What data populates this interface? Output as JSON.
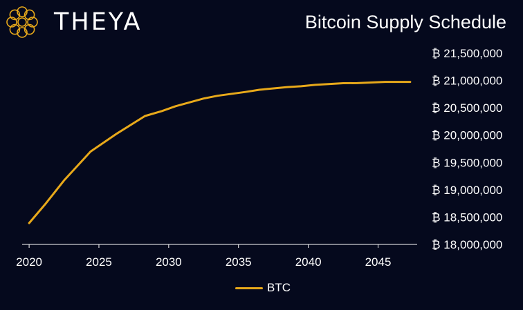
{
  "brand": {
    "name": "THEYA",
    "logo_icon": "theya-star-logo-icon"
  },
  "colors": {
    "background": "#05091d",
    "accent": "#e8a91a",
    "text": "#ffffff",
    "axis": "#ffffff"
  },
  "chart_data": {
    "type": "line",
    "title": "Bitcoin Supply Schedule",
    "xlabel": "",
    "ylabel": "",
    "xlim": [
      2019.5,
      2047.8
    ],
    "ylim": [
      18000000,
      21500000
    ],
    "x_ticks": [
      2020,
      2025,
      2030,
      2035,
      2040,
      2045
    ],
    "x_tick_labels": [
      "2020",
      "2025",
      "2030",
      "2035",
      "2040",
      "2045"
    ],
    "y_ticks": [
      18000000,
      18500000,
      19000000,
      19500000,
      20000000,
      20500000,
      21000000,
      21500000
    ],
    "y_tick_labels": [
      "₿ 18,000,000",
      "₿ 18,500,000",
      "₿ 19,000,000",
      "₿ 19,500,000",
      "₿ 20,000,000",
      "₿ 20,500,000",
      "₿ 21,000,000",
      "₿ 21,500,000"
    ],
    "grid": false,
    "legend_position": "bottom-center",
    "series": [
      {
        "name": "BTC",
        "x": [
          2020.0,
          2021.2,
          2022.5,
          2024.4,
          2026.3,
          2028.3,
          2029.5,
          2030.5,
          2032.5,
          2033.5,
          2035.5,
          2036.5,
          2038.5,
          2039.5,
          2040.5,
          2042.5,
          2043.5,
          2045.5,
          2047.3
        ],
        "y": [
          18390000,
          18750000,
          19170000,
          19700000,
          20030000,
          20350000,
          20440000,
          20530000,
          20670000,
          20720000,
          20790000,
          20830000,
          20880000,
          20895000,
          20920000,
          20950000,
          20952000,
          20975000,
          20975000
        ]
      }
    ]
  }
}
